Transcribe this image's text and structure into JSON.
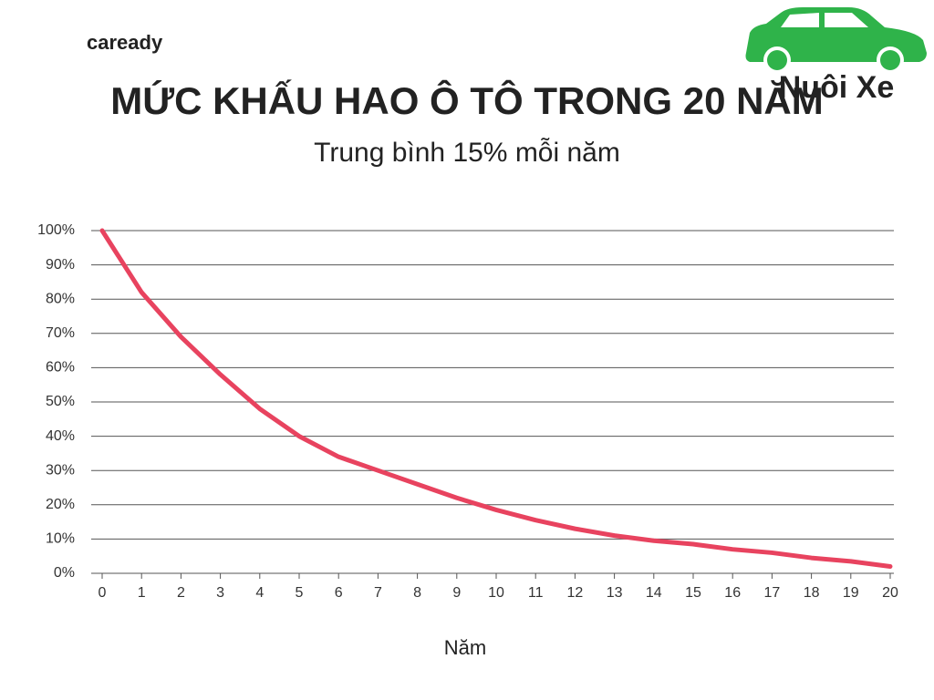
{
  "brand": "caready",
  "watermark": "Nuôi Xe",
  "chart_data": {
    "type": "line",
    "title": "MỨC KHẤU HAO Ô TÔ TRONG 20 NĂM",
    "subtitle": "Trung bình 15% mỗi năm",
    "x_label": "Năm",
    "x": [
      0,
      1,
      2,
      3,
      4,
      5,
      6,
      7,
      8,
      9,
      10,
      11,
      12,
      13,
      14,
      15,
      16,
      17,
      18,
      19,
      20
    ],
    "values": [
      100,
      82,
      69,
      58,
      48,
      40,
      34,
      30,
      26,
      22,
      18.5,
      15.5,
      13,
      11,
      9.5,
      8.5,
      7,
      6,
      4.5,
      3.5,
      2
    ],
    "color": "#e8435f",
    "xlim": [
      0,
      20
    ],
    "xticks": [
      0,
      1,
      2,
      3,
      4,
      5,
      6,
      7,
      8,
      9,
      10,
      11,
      12,
      13,
      14,
      15,
      16,
      17,
      18,
      19,
      20
    ],
    "ylim": [
      0,
      100
    ],
    "yticks": [
      {
        "value": 0,
        "label": "0%"
      },
      {
        "value": 10,
        "label": "10%"
      },
      {
        "value": 20,
        "label": "20%"
      },
      {
        "value": 30,
        "label": "30%"
      },
      {
        "value": 40,
        "label": "40%"
      },
      {
        "value": 50,
        "label": "50%"
      },
      {
        "value": 60,
        "label": "60%"
      },
      {
        "value": 70,
        "label": "70%"
      },
      {
        "value": 80,
        "label": "80%"
      },
      {
        "value": 90,
        "label": "90%"
      },
      {
        "value": 100,
        "label": "100%"
      }
    ],
    "grid": true
  }
}
